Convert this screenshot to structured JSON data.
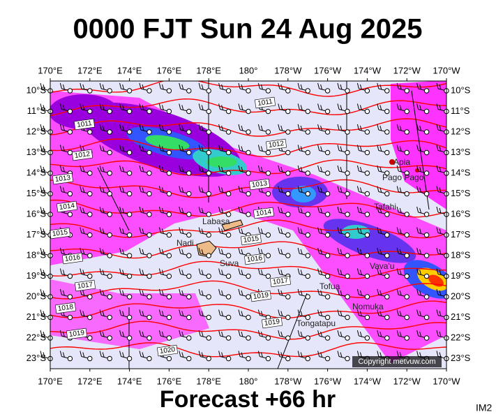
{
  "title": "0000 FJT Sun 24 Aug 2025",
  "footer": "Forecast +66 hr",
  "corner": "IM2",
  "copyright": "Copyright metvuw.com",
  "longitudes": [
    "170°E",
    "172°E",
    "174°E",
    "176°E",
    "178°E",
    "180°",
    "178°W",
    "176°W",
    "174°W",
    "172°W",
    "170°W"
  ],
  "latitudes": [
    "10°S",
    "11°S",
    "12°S",
    "13°S",
    "14°S",
    "15°S",
    "16°S",
    "17°S",
    "18°S",
    "19°S",
    "20°S",
    "21°S",
    "22°S",
    "23°S"
  ],
  "places": [
    "Apia",
    "Pago Pago",
    "Tafahi",
    "Labasa",
    "Nadi",
    "Suva",
    "Vava'u",
    "Tofua",
    "Nomuka",
    "Tongatapu"
  ],
  "isobars": [
    "1011",
    "1011",
    "1012",
    "1012",
    "1013",
    "1013",
    "1014",
    "1014",
    "1015",
    "1015",
    "1016",
    "1016",
    "1017",
    "1017",
    "1018",
    "1019",
    "1019",
    "1019",
    "1020"
  ]
}
